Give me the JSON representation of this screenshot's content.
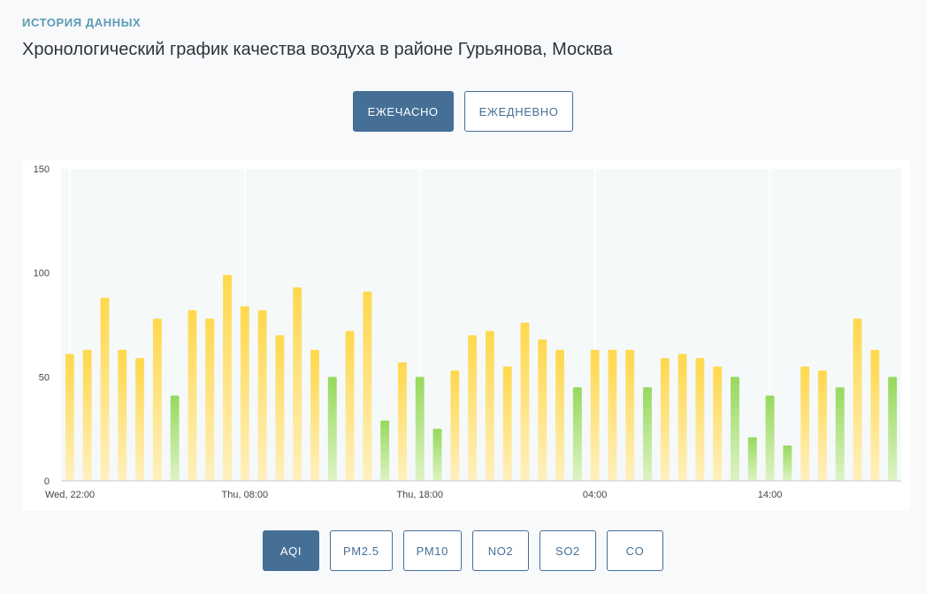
{
  "header": {
    "section_label": "ИСТОРИЯ ДАННЫХ",
    "title": "Хронологический график качества воздуха в районе Гурьянова, Москва"
  },
  "period_toggle": {
    "hourly_label": "ЕЖЕЧАСНО",
    "daily_label": "ЕЖЕДНЕВНО",
    "selected": "hourly"
  },
  "pollutant_tabs": {
    "items": [
      "AQI",
      "PM2.5",
      "PM10",
      "NO2",
      "SO2",
      "CO"
    ],
    "selected": "AQI"
  },
  "colors": {
    "accent": "#466f96",
    "moderate_top": "#ffd84d",
    "moderate_bottom": "#fff0be",
    "good_top": "#96d95c",
    "good_bottom": "#ddf3c4",
    "plot_background": "#f5f9fa"
  },
  "chart_data": {
    "type": "bar",
    "ylim": [
      0,
      150
    ],
    "yticks": [
      0,
      50,
      100,
      150
    ],
    "grid": true,
    "x_tick_labels": [
      {
        "index": 0,
        "label": "Wed, 22:00"
      },
      {
        "index": 10,
        "label": "Thu, 08:00"
      },
      {
        "index": 20,
        "label": "Thu, 18:00"
      },
      {
        "index": 30,
        "label": "04:00"
      },
      {
        "index": 40,
        "label": "14:00"
      }
    ],
    "values": [
      61,
      63,
      88,
      63,
      59,
      78,
      41,
      82,
      78,
      99,
      84,
      82,
      70,
      93,
      63,
      50,
      72,
      91,
      29,
      57,
      50,
      25,
      53,
      70,
      72,
      55,
      76,
      68,
      63,
      45,
      63,
      63,
      63,
      45,
      59,
      61,
      59,
      55,
      50,
      21,
      41,
      17,
      55,
      53,
      45,
      78,
      63,
      50
    ],
    "good_threshold": 50
  }
}
